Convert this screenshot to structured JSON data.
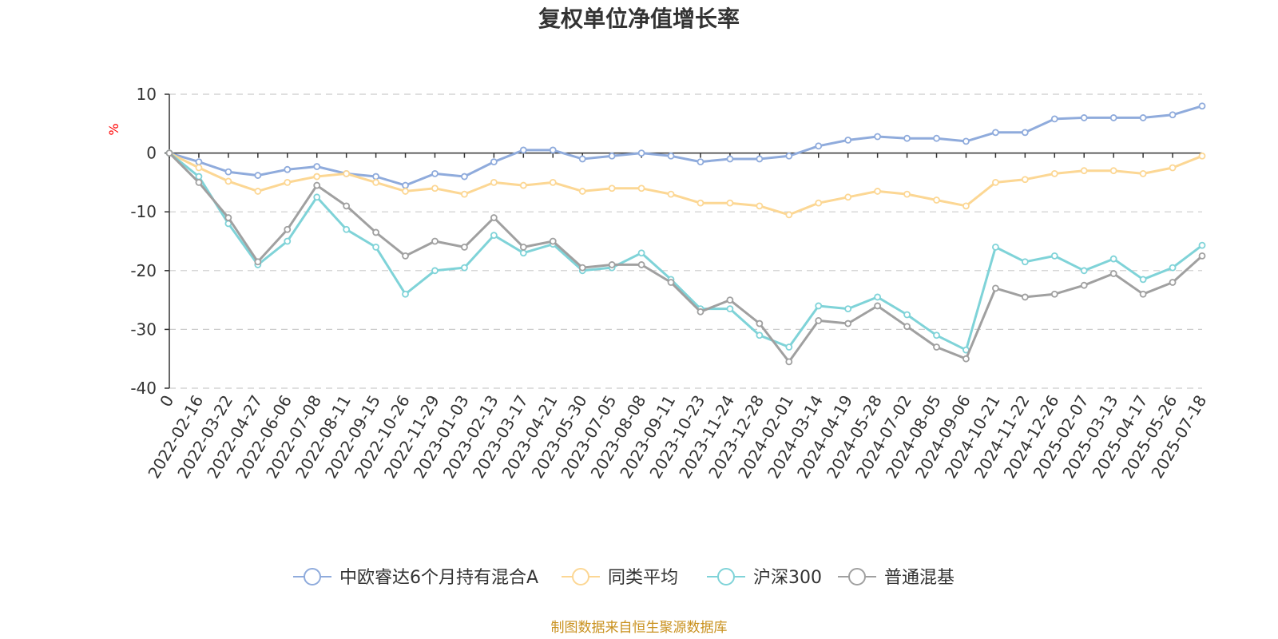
{
  "title": "复权单位净值增长率",
  "unit": "%",
  "source": "制图数据来自恒生聚源数据库",
  "colors": {
    "unit": "#ff0000",
    "source": "#c9911e",
    "axis": "#333333",
    "grid": "#cccccc"
  },
  "chart_data": {
    "type": "line",
    "title": "复权单位净值增长率",
    "ylabel": "%",
    "ylim": [
      -40,
      10
    ],
    "yticks": [
      10,
      0,
      -10,
      -20,
      -30,
      -40
    ],
    "grid": "horizontal dashed",
    "legend_position": "bottom",
    "x": [
      "0",
      "2022-02-16",
      "2022-03-22",
      "2022-04-27",
      "2022-06-06",
      "2022-07-08",
      "2022-08-11",
      "2022-09-15",
      "2022-10-26",
      "2022-11-29",
      "2023-01-03",
      "2023-02-13",
      "2023-03-17",
      "2023-04-21",
      "2023-05-30",
      "2023-07-05",
      "2023-08-08",
      "2023-09-11",
      "2023-10-23",
      "2023-11-24",
      "2023-12-28",
      "2024-02-01",
      "2024-03-14",
      "2024-04-19",
      "2024-05-28",
      "2024-07-02",
      "2024-08-05",
      "2024-09-06",
      "2024-10-21",
      "2024-11-22",
      "2024-12-26",
      "2025-02-07",
      "2025-03-13",
      "2025-04-17",
      "2025-05-26",
      "2025-07-18"
    ],
    "series": [
      {
        "name": "中欧睿达6个月持有混合A",
        "color": "#8fabdc",
        "values": [
          0,
          -1.5,
          -3.2,
          -3.8,
          -2.8,
          -2.3,
          -3.5,
          -4.0,
          -5.5,
          -3.5,
          -4.0,
          -1.5,
          0.5,
          0.5,
          -1.0,
          -0.5,
          0,
          -0.5,
          -1.5,
          -1.0,
          -1.0,
          -0.5,
          1.2,
          2.2,
          2.8,
          2.5,
          2.5,
          2.0,
          3.5,
          3.5,
          5.8,
          6.0,
          6.0,
          6.0,
          6.5,
          8.0
        ]
      },
      {
        "name": "同类平均",
        "color": "#fcd794",
        "values": [
          0,
          -2.5,
          -4.8,
          -6.5,
          -5.0,
          -4.0,
          -3.5,
          -5.0,
          -6.5,
          -6.0,
          -7.0,
          -5.0,
          -5.5,
          -5.0,
          -6.5,
          -6.0,
          -6.0,
          -7.0,
          -8.5,
          -8.5,
          -9.0,
          -10.5,
          -8.5,
          -7.5,
          -6.5,
          -7.0,
          -8.0,
          -9.0,
          -5.0,
          -4.5,
          -3.5,
          -3.0,
          -3.0,
          -3.5,
          -2.5,
          -0.5
        ]
      },
      {
        "name": "沪深300",
        "color": "#7fd3d8",
        "values": [
          0,
          -4.0,
          -12.0,
          -19.0,
          -15.0,
          -7.5,
          -13.0,
          -16.0,
          -24.0,
          -20.0,
          -19.5,
          -14.0,
          -17.0,
          -15.5,
          -20.0,
          -19.5,
          -17.0,
          -21.5,
          -26.5,
          -26.5,
          -31.0,
          -33.0,
          -26.0,
          -26.5,
          -24.5,
          -27.5,
          -31.0,
          -33.5,
          -16.0,
          -18.5,
          -17.5,
          -20.0,
          -18.0,
          -21.5,
          -19.5,
          -15.7
        ]
      },
      {
        "name": "普通混基",
        "color": "#a0a0a0",
        "values": [
          0,
          -5.0,
          -11.0,
          -18.5,
          -13.0,
          -5.5,
          -9.0,
          -13.5,
          -17.5,
          -15.0,
          -16.0,
          -11.0,
          -16.0,
          -15.0,
          -19.5,
          -19.0,
          -19.0,
          -22.0,
          -27.0,
          -25.0,
          -29.0,
          -35.5,
          -28.5,
          -29.0,
          -26.0,
          -29.5,
          -33.0,
          -35.0,
          -23.0,
          -24.5,
          -24.0,
          -22.5,
          -20.5,
          -24.0,
          -22.0,
          -17.5
        ]
      }
    ]
  }
}
